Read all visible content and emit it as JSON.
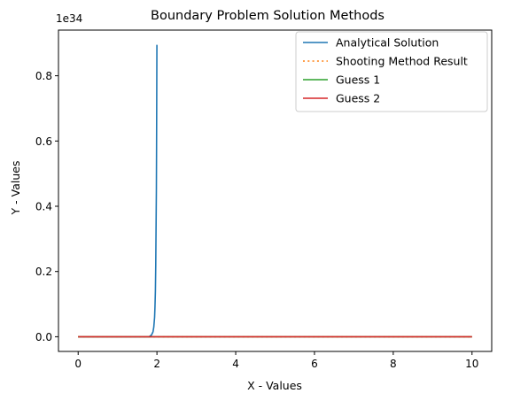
{
  "chart_data": {
    "type": "line",
    "title": "Boundary Problem Solution Methods",
    "xlabel": "X - Values",
    "ylabel": "Y - Values",
    "y_offset_label": "1e34",
    "xlim": [
      -0.5,
      10.5
    ],
    "ylim": [
      -0.045,
      0.94
    ],
    "x_ticks": [
      0,
      2,
      4,
      6,
      8,
      10
    ],
    "x_tick_labels": [
      "0",
      "2",
      "4",
      "6",
      "8",
      "10"
    ],
    "y_ticks": [
      0.0,
      0.2,
      0.4,
      0.6,
      0.8
    ],
    "y_tick_labels": [
      "0.0",
      "0.2",
      "0.4",
      "0.6",
      "0.8"
    ],
    "grid": false,
    "legend_position": "top-right",
    "series": [
      {
        "name": "Analytical Solution",
        "color": "#1f77b4",
        "dash": "solid",
        "x": [
          0,
          1.8,
          1.86,
          1.9,
          1.92,
          1.94,
          1.95,
          1.96,
          1.97,
          1.98,
          1.985,
          1.99,
          1.995,
          2.0
        ],
        "y": [
          0,
          0.0,
          0.005,
          0.015,
          0.03,
          0.06,
          0.09,
          0.14,
          0.22,
          0.35,
          0.45,
          0.58,
          0.73,
          0.895
        ]
      },
      {
        "name": "Shooting Method Result",
        "color": "#ff7f0e",
        "dash": "dotted",
        "x": [
          0,
          10
        ],
        "y": [
          0,
          0
        ]
      },
      {
        "name": "Guess 1",
        "color": "#2ca02c",
        "dash": "solid",
        "x": [
          0,
          10
        ],
        "y": [
          0,
          0
        ]
      },
      {
        "name": "Guess 2",
        "color": "#d62728",
        "dash": "solid",
        "x": [
          0,
          10
        ],
        "y": [
          0,
          0
        ]
      }
    ]
  }
}
